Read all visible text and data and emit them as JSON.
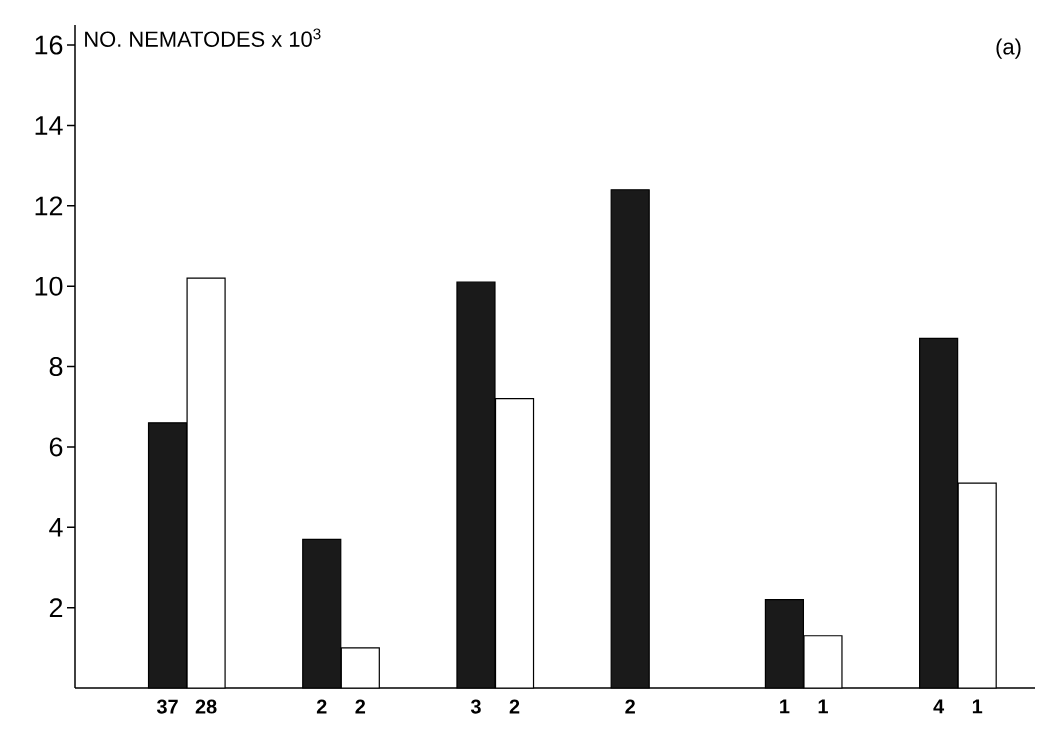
{
  "chart_data": {
    "type": "bar",
    "ylabel": "NO. NEMATODES x 10$^{3}$",
    "annotations": [
      "(a)"
    ],
    "categories": [
      "37",
      "28",
      "2",
      "2",
      "3",
      "2",
      "2",
      null,
      "1",
      "1",
      "4",
      "1"
    ],
    "values": [
      6.6,
      10.2,
      3.7,
      1.0,
      10.1,
      7.2,
      12.4,
      null,
      2.2,
      1.3,
      8.7,
      5.1
    ],
    "colors": [
      "#1a1a1a",
      "#ffffff",
      "#1a1a1a",
      "#ffffff",
      "#1a1a1a",
      "#ffffff",
      "#1a1a1a",
      "#ffffff",
      "#1a1a1a",
      "#ffffff",
      "#1a1a1a",
      "#ffffff"
    ],
    "ylim": [
      0,
      16.5
    ],
    "yticks": [
      2,
      4,
      6,
      8,
      10,
      12,
      14,
      16
    ]
  }
}
